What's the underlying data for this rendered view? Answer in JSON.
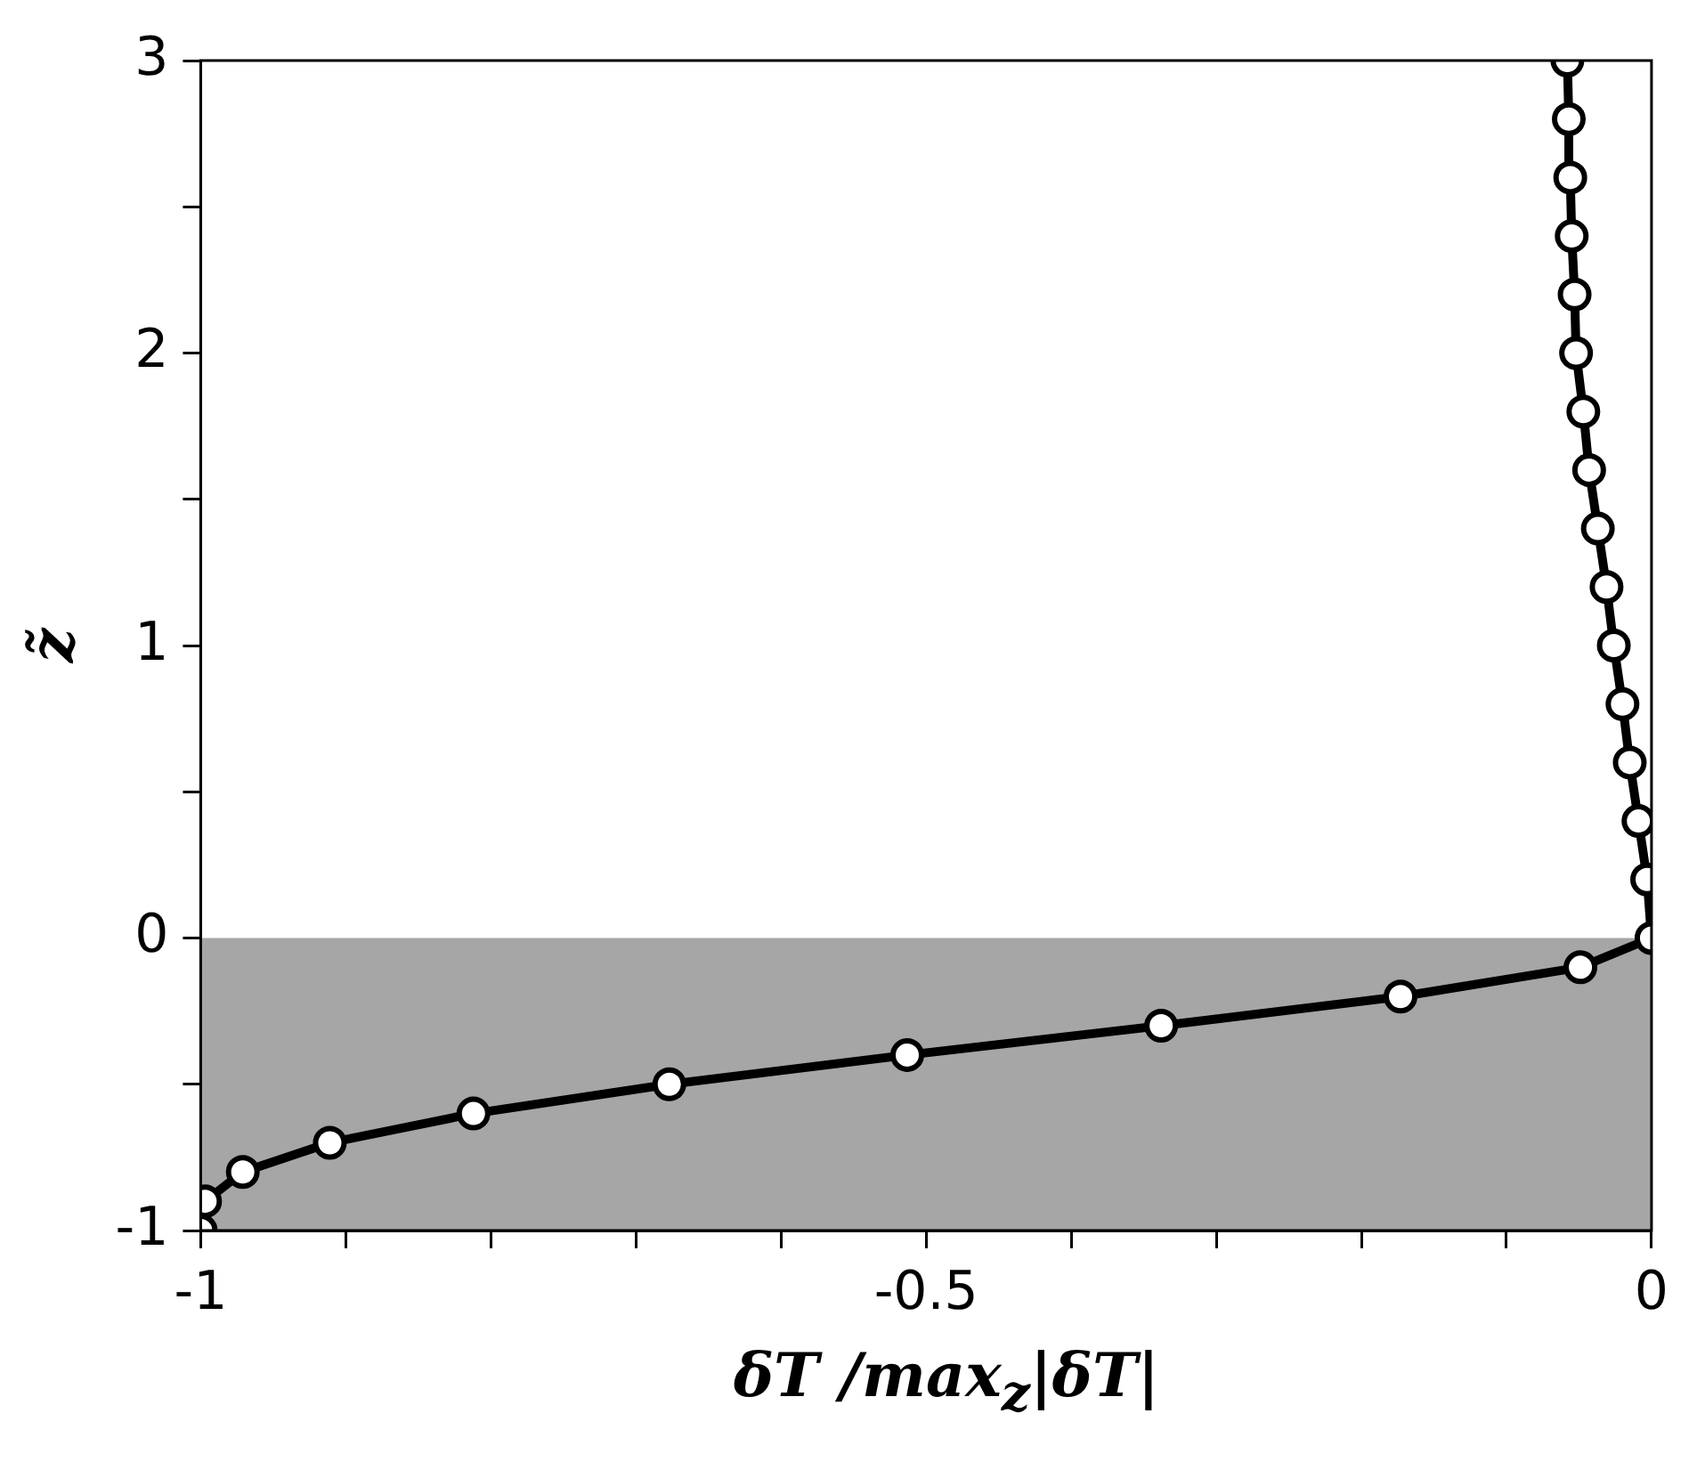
{
  "chart_data": {
    "type": "line",
    "xlabel": "δT /max$_{z}$|δT|",
    "ylabel": "z̃",
    "series": [
      {
        "color": "#000000",
        "x": [
          -1,
          -0.997,
          -0.971,
          -0.911,
          -0.812,
          -0.677,
          -0.513,
          -0.338,
          -0.173,
          -0.049,
          0,
          -0.003,
          -0.009,
          -0.015,
          -0.02,
          -0.026,
          -0.031,
          -0.037,
          -0.043,
          -0.047,
          -0.052,
          -0.053,
          -0.055,
          -0.056,
          -0.057,
          -0.058
        ],
        "values": [
          -1,
          -0.9,
          -0.8,
          -0.7,
          -0.6,
          -0.5,
          -0.4,
          -0.3,
          -0.2,
          -0.1,
          0,
          0.2,
          0.4,
          0.6,
          0.8,
          1,
          1.2,
          1.4,
          1.6,
          1.8,
          2,
          2.2,
          2.4,
          2.6,
          2.8,
          3
        ]
      }
    ],
    "marker": "circle",
    "line_style": "solid",
    "xlim": [
      -1,
      0
    ],
    "ylim": [
      -1,
      3
    ],
    "xticks": [
      -1,
      {
        "value": -0.9,
        "label": null
      },
      {
        "value": -0.8,
        "label": null
      },
      {
        "value": -0.7,
        "label": null
      },
      {
        "value": -0.6,
        "label": null
      },
      -0.5,
      {
        "value": -0.4,
        "label": null
      },
      {
        "value": -0.3,
        "label": null
      },
      {
        "value": -0.2,
        "label": null
      },
      {
        "value": -0.1,
        "label": null
      },
      0
    ],
    "yticks": [
      -1,
      {
        "value": -0.5,
        "label": null
      },
      0,
      {
        "value": 0.5,
        "label": null
      },
      1,
      {
        "value": 1.5,
        "label": null
      },
      2,
      {
        "value": 2.5,
        "label": null
      },
      3
    ],
    "bands": [
      {
        "axis": "y",
        "from": -1,
        "to": 0,
        "color": "#a6a6a6"
      }
    ],
    "grid": false,
    "legend": false
  }
}
